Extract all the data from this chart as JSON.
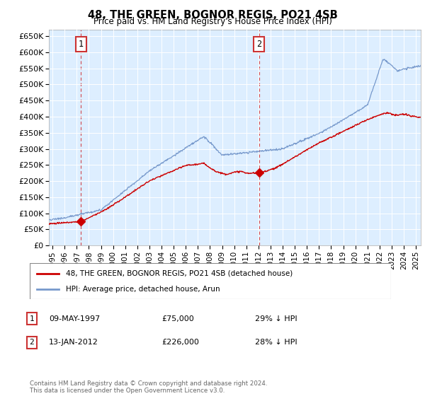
{
  "title": "48, THE GREEN, BOGNOR REGIS, PO21 4SB",
  "subtitle": "Price paid vs. HM Land Registry's House Price Index (HPI)",
  "ylabel_ticks": [
    "£0",
    "£50K",
    "£100K",
    "£150K",
    "£200K",
    "£250K",
    "£300K",
    "£350K",
    "£400K",
    "£450K",
    "£500K",
    "£550K",
    "£600K",
    "£650K"
  ],
  "ytick_values": [
    0,
    50000,
    100000,
    150000,
    200000,
    250000,
    300000,
    350000,
    400000,
    450000,
    500000,
    550000,
    600000,
    650000
  ],
  "ylim": [
    0,
    670000
  ],
  "xlim_start": 1994.7,
  "xlim_end": 2025.4,
  "background_color": "#ddeeff",
  "red_line_color": "#cc0000",
  "blue_line_color": "#7799cc",
  "transaction1_x": 1997.36,
  "transaction1_y": 75000,
  "transaction1_label": "1",
  "transaction1_date": "09-MAY-1997",
  "transaction1_price": "£75,000",
  "transaction1_note": "29% ↓ HPI",
  "transaction2_x": 2012.04,
  "transaction2_y": 226000,
  "transaction2_label": "2",
  "transaction2_date": "13-JAN-2012",
  "transaction2_price": "£226,000",
  "transaction2_note": "28% ↓ HPI",
  "legend_red_label": "48, THE GREEN, BOGNOR REGIS, PO21 4SB (detached house)",
  "legend_blue_label": "HPI: Average price, detached house, Arun",
  "footer_text": "Contains HM Land Registry data © Crown copyright and database right 2024.\nThis data is licensed under the Open Government Licence v3.0.",
  "xtick_years": [
    1995,
    1996,
    1997,
    1998,
    1999,
    2000,
    2001,
    2002,
    2003,
    2004,
    2005,
    2006,
    2007,
    2008,
    2009,
    2010,
    2011,
    2012,
    2013,
    2014,
    2015,
    2016,
    2017,
    2018,
    2019,
    2020,
    2021,
    2022,
    2023,
    2024,
    2025
  ]
}
